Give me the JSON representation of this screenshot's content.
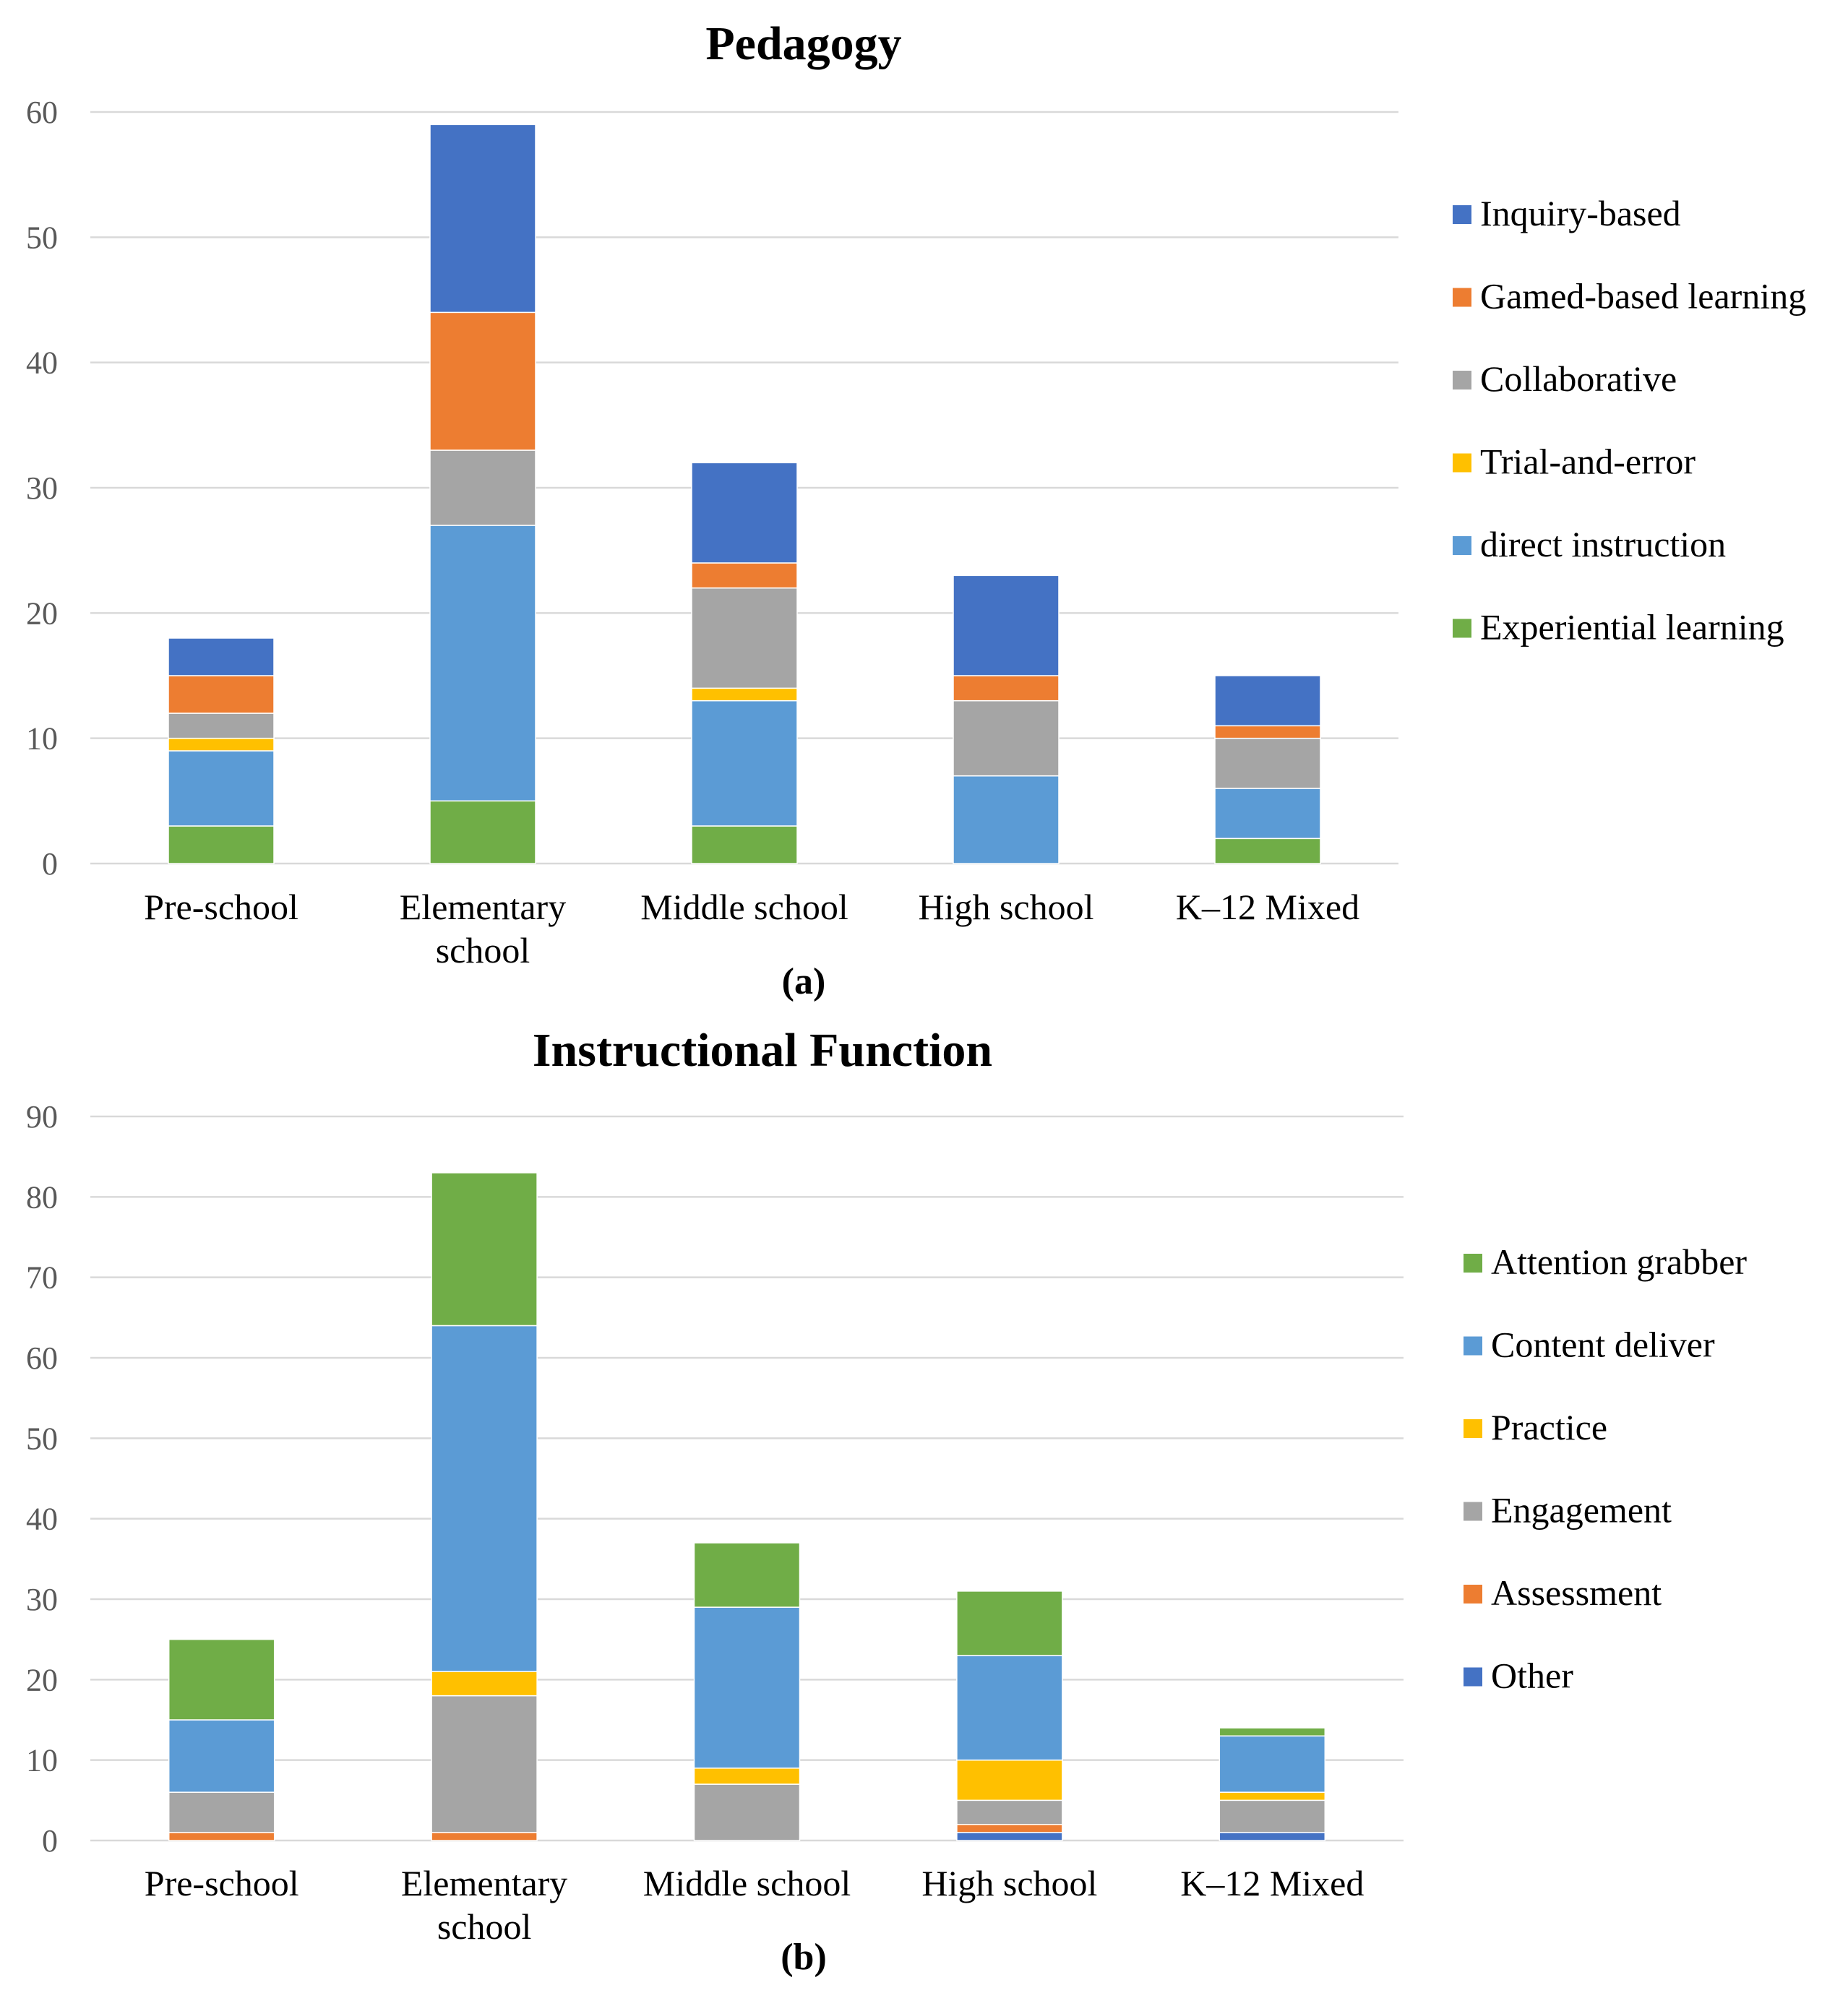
{
  "chart_data": [
    {
      "type": "bar",
      "stacked": true,
      "title": "Pedagogy",
      "caption": "(a)",
      "categories": [
        [
          "Pre-school"
        ],
        [
          "Elementary",
          "school"
        ],
        [
          "Middle school"
        ],
        [
          "High school"
        ],
        [
          "K–12 Mixed"
        ]
      ],
      "ylim": [
        0,
        60
      ],
      "yticks": [
        0,
        10,
        20,
        30,
        40,
        50,
        60
      ],
      "series": [
        {
          "name": "Experiential learning",
          "color": "#70ad47",
          "values": [
            3,
            5,
            3,
            0,
            2
          ]
        },
        {
          "name": "direct instruction",
          "color": "#5b9bd5",
          "values": [
            6,
            22,
            10,
            7,
            4
          ]
        },
        {
          "name": "Trial-and-error",
          "color": "#ffc000",
          "values": [
            1,
            0,
            1,
            0,
            0
          ]
        },
        {
          "name": "Collaborative",
          "color": "#a5a5a5",
          "values": [
            2,
            6,
            8,
            6,
            4
          ]
        },
        {
          "name": "Gamed-based learning",
          "color": "#ed7d31",
          "values": [
            3,
            11,
            2,
            2,
            1
          ]
        },
        {
          "name": "Inquiry-based",
          "color": "#4472c4",
          "values": [
            3,
            15,
            8,
            8,
            4
          ]
        }
      ],
      "legend_order": [
        "Inquiry-based",
        "Gamed-based learning",
        "Collaborative",
        "Trial-and-error",
        "direct instruction",
        "Experiential learning"
      ],
      "legend_position": "right"
    },
    {
      "type": "bar",
      "stacked": true,
      "title": "Instructional Function",
      "caption": "(b)",
      "categories": [
        [
          "Pre-school"
        ],
        [
          "Elementary",
          "school"
        ],
        [
          "Middle school"
        ],
        [
          "High school"
        ],
        [
          "K–12 Mixed"
        ]
      ],
      "ylim": [
        0,
        90
      ],
      "yticks": [
        0,
        10,
        20,
        30,
        40,
        50,
        60,
        70,
        80,
        90
      ],
      "series": [
        {
          "name": "Other",
          "color": "#4472c4",
          "values": [
            0,
            0,
            0,
            1,
            1
          ]
        },
        {
          "name": "Assessment",
          "color": "#ed7d31",
          "values": [
            1,
            1,
            0,
            1,
            0
          ]
        },
        {
          "name": "Engagement",
          "color": "#a5a5a5",
          "values": [
            5,
            17,
            7,
            3,
            4
          ]
        },
        {
          "name": "Practice",
          "color": "#ffc000",
          "values": [
            0,
            3,
            2,
            5,
            1
          ]
        },
        {
          "name": "Content deliver",
          "color": "#5b9bd5",
          "values": [
            9,
            43,
            20,
            13,
            7
          ]
        },
        {
          "name": "Attention grabber",
          "color": "#70ad47",
          "values": [
            10,
            19,
            8,
            8,
            1
          ]
        }
      ],
      "legend_order": [
        "Attention grabber",
        "Content deliver",
        "Practice",
        "Engagement",
        "Assessment",
        "Other"
      ],
      "legend_position": "right"
    }
  ]
}
